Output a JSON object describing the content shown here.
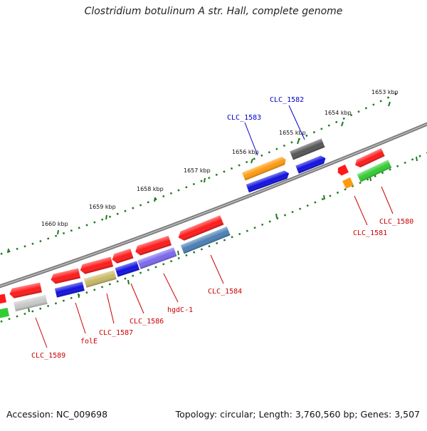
{
  "title": "Clostridium botulinum A str. Hall, complete genome",
  "accession": "Accession: NC_009698",
  "summary": "Topology: circular; Length: 3,760,560 bp; Genes: 3,507",
  "colors": {
    "plus_strand_red": "#ff1a1a",
    "minus_gene_blue": "#1010e0",
    "backbone_gray": "#8a8a8a",
    "tick_green": "#1e7a1e",
    "label_red": "#cc0000",
    "label_blue": "#0000cc",
    "orange": "#ff9a10",
    "dark_gray": "#555555",
    "light_gray": "#c8c8c8",
    "green": "#33cc33",
    "olive": "#c8b866",
    "steel_blue": "#4a7fb5",
    "purple": "#7b68ee"
  },
  "ruler": {
    "unit": "kbp",
    "ticks": [
      "1653 kbp",
      "1654 kbp",
      "1655 kbp",
      "1656 kbp",
      "1657 kbp",
      "1658 kbp",
      "1659 kbp",
      "1660 kbp"
    ]
  },
  "gene_labels": {
    "clc_1582": "CLC_1582",
    "clc_1583": "CLC_1583",
    "clc_1580": "CLC_1580",
    "clc_1581": "CLC_1581",
    "clc_1584": "CLC_1584",
    "hgdc_1": "hgdC-1",
    "clc_1586": "CLC_1586",
    "clc_1587": "CLC_1587",
    "fole": "folE",
    "clc_1589": "CLC_1589"
  }
}
